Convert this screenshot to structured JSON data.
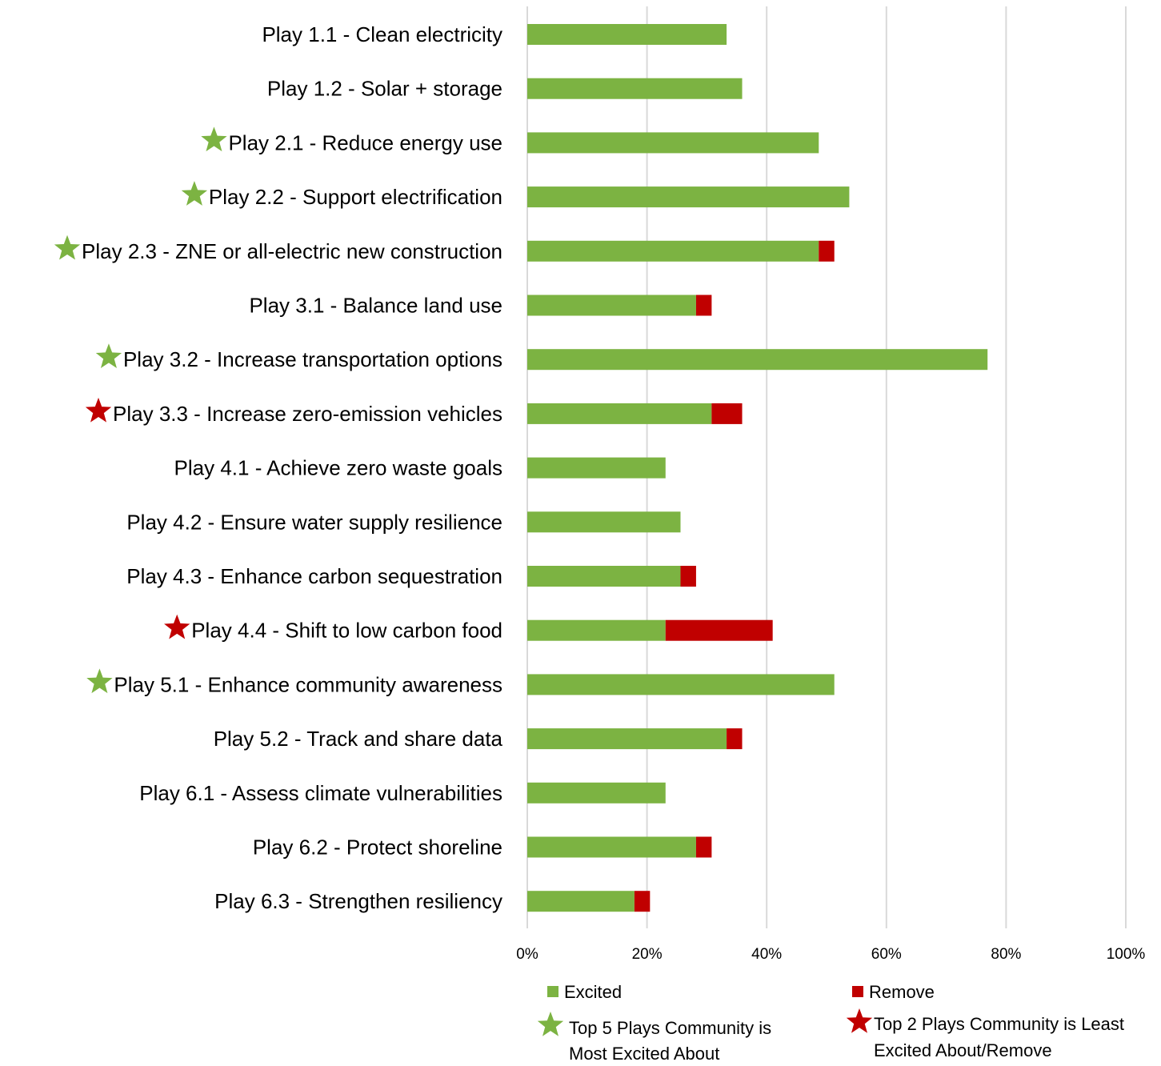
{
  "colors": {
    "excited": "#7cb342",
    "remove": "#c00000",
    "gridline": "#d9d9d9",
    "star_green": "#7cb342",
    "star_red": "#c00000"
  },
  "chart_data": {
    "type": "bar",
    "orientation": "horizontal",
    "stacked": true,
    "title": "",
    "xlabel": "",
    "ylabel": "",
    "xlim": [
      0,
      1
    ],
    "x_ticks": [
      "0%",
      "20%",
      "40%",
      "60%",
      "80%",
      "100%"
    ],
    "grid": "vertical",
    "legend_position": "bottom",
    "categories": [
      "Play 1.1 - Clean electricity",
      "Play 1.2 - Solar + storage",
      "Play 2.1 - Reduce energy use",
      "Play 2.2 - Support electrification",
      "Play 2.3 - ZNE or all-electric new construction",
      "Play 3.1 - Balance land use",
      "Play 3.2 - Increase transportation options",
      "Play 3.3 - Increase zero-emission vehicles",
      "Play 4.1 - Achieve zero waste goals",
      "Play 4.2 - Ensure water supply resilience",
      "Play 4.3 - Enhance carbon sequestration",
      "Play 4.4 - Shift to low carbon food",
      "Play 5.1 - Enhance community awareness",
      "Play 5.2 - Track and share data",
      "Play 6.1 - Assess climate vulnerabilities",
      "Play 6.2 - Protect shoreline",
      "Play 6.3 - Strengthen resiliency"
    ],
    "markers": [
      "",
      "",
      "green",
      "green",
      "green",
      "",
      "green",
      "red",
      "",
      "",
      "",
      "red",
      "green",
      "",
      "",
      "",
      ""
    ],
    "series": [
      {
        "name": "Excited",
        "values": [
          0.333,
          0.359,
          0.487,
          0.538,
          0.487,
          0.282,
          0.769,
          0.308,
          0.231,
          0.256,
          0.256,
          0.231,
          0.513,
          0.333,
          0.231,
          0.282,
          0.179
        ]
      },
      {
        "name": "Remove",
        "values": [
          0,
          0,
          0,
          0,
          0.026,
          0.026,
          0,
          0.051,
          0,
          0,
          0.026,
          0.179,
          0,
          0.026,
          0,
          0.026,
          0.026
        ]
      }
    ]
  },
  "legend": {
    "excited": "Excited",
    "remove": "Remove",
    "star_green_line1": "Top 5 Plays Community is",
    "star_green_line2": "Most Excited About",
    "star_red_line1": "Top 2 Plays Community is Least",
    "star_red_line2": "Excited About/Remove"
  }
}
